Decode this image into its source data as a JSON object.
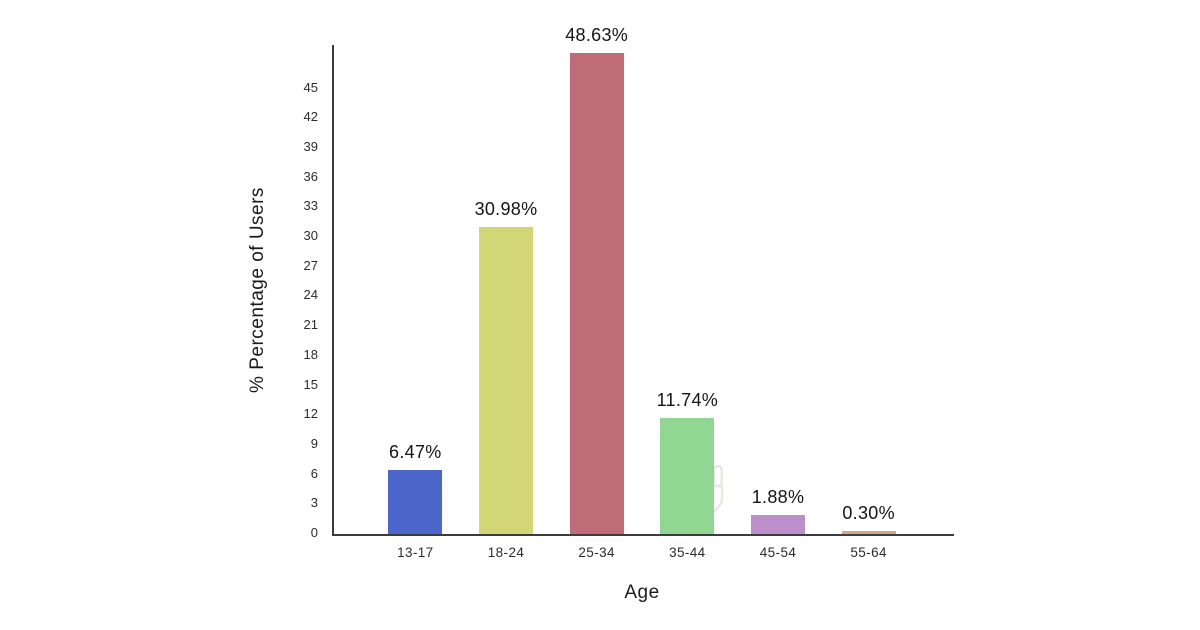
{
  "chart_data": {
    "type": "bar",
    "title": "",
    "xlabel": "Age",
    "ylabel": "% Percentage of Users",
    "categories": [
      "13-17",
      "18-24",
      "25-34",
      "35-44",
      "45-54",
      "55-64"
    ],
    "values": [
      6.47,
      30.98,
      48.63,
      11.74,
      1.88,
      0.3
    ],
    "value_labels": [
      "6.47%",
      "30.98%",
      "48.63%",
      "11.74%",
      "1.88%",
      "0.30%"
    ],
    "bar_colors": [
      "#4d66cb",
      "#d3d674",
      "#c06b78",
      "#90d793",
      "#bc8fcb",
      "#d2a687"
    ],
    "yticks": [
      0,
      3,
      6,
      9,
      12,
      15,
      18,
      21,
      24,
      27,
      30,
      33,
      36,
      39,
      42,
      45
    ],
    "ylim": [
      0,
      49.4
    ],
    "grid": false,
    "legend": false,
    "axis_color": "#3c3c3c",
    "text_color": "#2b2b2b",
    "background": "#ffffff"
  },
  "watermark": {
    "name": "hand-logo"
  }
}
